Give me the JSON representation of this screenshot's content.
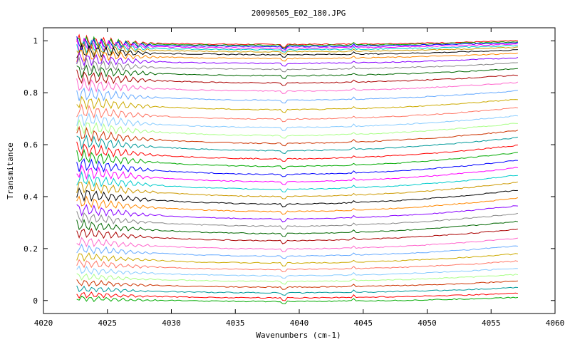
{
  "chart_data": {
    "type": "line",
    "title": "20090505_E02_180.JPG",
    "xlabel": "Wavenumbers (cm-1)",
    "ylabel": "Transmitance",
    "xlim": [
      4020,
      4060
    ],
    "ylim": [
      -0.05,
      1.05
    ],
    "x_ticks": [
      "4020",
      "4025",
      "4030",
      "4035",
      "4040",
      "4045",
      "4050",
      "4055",
      "4060"
    ],
    "y_ticks": [
      "0",
      "0.2",
      "0.4",
      "0.6",
      "0.8",
      "1"
    ],
    "x_range_of_series": [
      4022.6,
      4057.1
    ],
    "grid": false,
    "legend": "none",
    "series_count": 42,
    "series_end_values": [
      1.0,
      0.997,
      0.993,
      0.988,
      0.982,
      0.975,
      0.965,
      0.952,
      0.935,
      0.915,
      0.893,
      0.868,
      0.84,
      0.808,
      0.775,
      0.742,
      0.712,
      0.683,
      0.655,
      0.628,
      0.598,
      0.57,
      0.54,
      0.512,
      0.483,
      0.455,
      0.425,
      0.395,
      0.365,
      0.335,
      0.305,
      0.275,
      0.24,
      0.21,
      0.18,
      0.152,
      0.125,
      0.1,
      0.075,
      0.05,
      0.028,
      0.012
    ],
    "colors": [
      "#ff0000",
      "#00aa00",
      "#0000ff",
      "#ff00ff",
      "#00cccc",
      "#cc9900",
      "#000000",
      "#ff8800",
      "#8800ff",
      "#888888",
      "#006600",
      "#aa0000",
      "#ff66cc",
      "#66aaff",
      "#ccaa00",
      "#ff7766",
      "#88ccff",
      "#aaff88",
      "#cc3300",
      "#009999"
    ]
  }
}
